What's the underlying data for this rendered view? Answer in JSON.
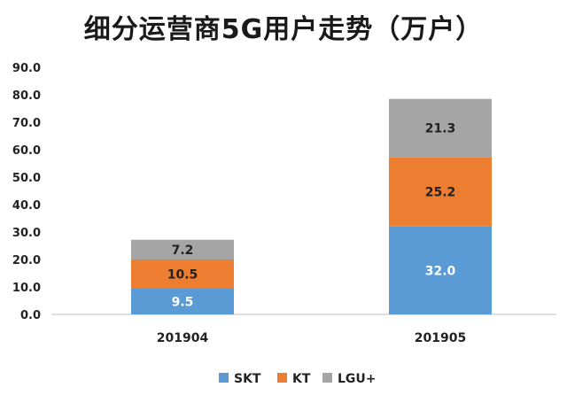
{
  "chart_data": {
    "type": "bar",
    "stacked": true,
    "title": "细分运营商5G用户走势（万户）",
    "categories": [
      "201904",
      "201905"
    ],
    "series": [
      {
        "name": "SKT",
        "values": [
          9.5,
          32.0
        ],
        "color": "#5b9bd5",
        "label_color": "#ffffff"
      },
      {
        "name": "KT",
        "values": [
          10.5,
          25.2
        ],
        "color": "#ed7d31",
        "label_color": "#222222"
      },
      {
        "name": "LGU+",
        "values": [
          7.2,
          21.3
        ],
        "color": "#a5a5a5",
        "label_color": "#222222"
      }
    ],
    "yticks": [
      "0.0",
      "10.0",
      "20.0",
      "30.0",
      "40.0",
      "50.0",
      "60.0",
      "70.0",
      "80.0",
      "90.0"
    ],
    "ylim": [
      0,
      90
    ],
    "grid": false,
    "legend": "bottom"
  }
}
